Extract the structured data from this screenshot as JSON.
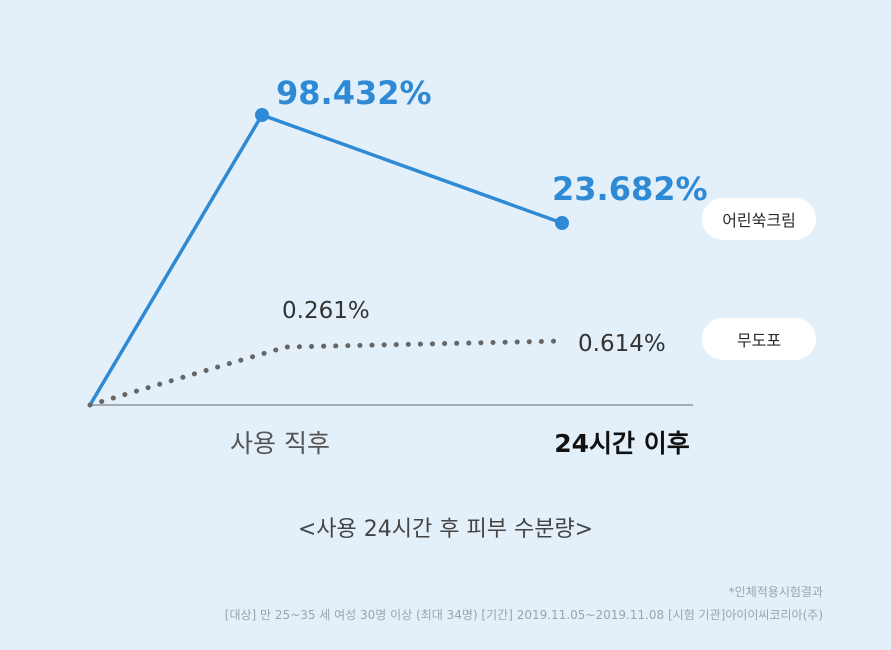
{
  "chart_data": {
    "type": "line",
    "categories": [
      "사용 직후",
      "24시간 이후"
    ],
    "series": [
      {
        "name": "어린쑥크림",
        "values": [
          98.432,
          23.682
        ],
        "labels": [
          "98.432%",
          "23.682%"
        ],
        "color": "#2f8ad6"
      },
      {
        "name": "무도포",
        "values": [
          0.261,
          0.614
        ],
        "labels": [
          "0.261%",
          "0.614%"
        ],
        "color": "#666666"
      }
    ],
    "title": "<사용 24시간 후 피부 수분량>",
    "xlabel": "",
    "ylabel": "",
    "grid": false,
    "legend": "right"
  },
  "footnote": {
    "line1": "*인체적용시험결과",
    "line2": "[대상] 만 25~35 세 여성 30명 이상 (최대 34명)  [기간] 2019.11.05~2019.11.08  [시험 기관]아이이씨코리아(주)"
  }
}
